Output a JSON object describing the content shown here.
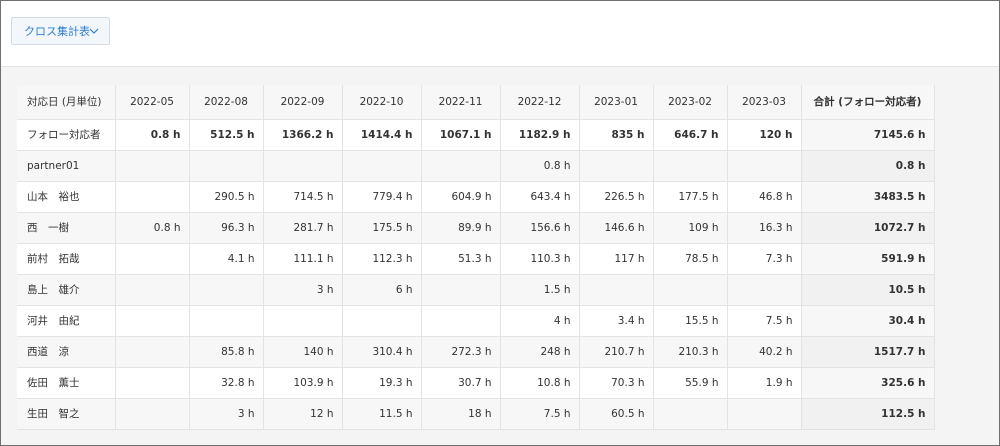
{
  "header": {
    "view_select_label": "クロス集計表"
  },
  "table": {
    "corner_label": "対応日 (月単位)",
    "columns": [
      "2022-05",
      "2022-08",
      "2022-09",
      "2022-10",
      "2022-11",
      "2022-12",
      "2023-01",
      "2023-02",
      "2023-03"
    ],
    "total_label": "合計 (フォロー対応者)",
    "summary_row": {
      "label": "フォロー対応者",
      "cells": [
        "0.8 h",
        "512.5 h",
        "1366.2 h",
        "1414.4 h",
        "1067.1 h",
        "1182.9 h",
        "835 h",
        "646.7 h",
        "120 h"
      ],
      "total": "7145.6 h"
    },
    "rows": [
      {
        "label": "partner01",
        "cells": [
          "",
          "",
          "",
          "",
          "",
          "0.8 h",
          "",
          "",
          ""
        ],
        "total": "0.8 h"
      },
      {
        "label": "山本　裕也",
        "cells": [
          "",
          "290.5 h",
          "714.5 h",
          "779.4 h",
          "604.9 h",
          "643.4 h",
          "226.5 h",
          "177.5 h",
          "46.8 h"
        ],
        "total": "3483.5 h"
      },
      {
        "label": "西　一樹",
        "cells": [
          "0.8 h",
          "96.3 h",
          "281.7 h",
          "175.5 h",
          "89.9 h",
          "156.6 h",
          "146.6 h",
          "109 h",
          "16.3 h"
        ],
        "total": "1072.7 h"
      },
      {
        "label": "前村　拓哉",
        "cells": [
          "",
          "4.1 h",
          "111.1 h",
          "112.3 h",
          "51.3 h",
          "110.3 h",
          "117 h",
          "78.5 h",
          "7.3 h"
        ],
        "total": "591.9 h"
      },
      {
        "label": "島上　雄介",
        "cells": [
          "",
          "",
          "3 h",
          "6 h",
          "",
          "1.5 h",
          "",
          "",
          ""
        ],
        "total": "10.5 h"
      },
      {
        "label": "河井　由紀",
        "cells": [
          "",
          "",
          "",
          "",
          "",
          "4 h",
          "3.4 h",
          "15.5 h",
          "7.5 h"
        ],
        "total": "30.4 h"
      },
      {
        "label": "西道　涼",
        "cells": [
          "",
          "85.8 h",
          "140 h",
          "310.4 h",
          "272.3 h",
          "248 h",
          "210.7 h",
          "210.3 h",
          "40.2 h"
        ],
        "total": "1517.7 h"
      },
      {
        "label": "佐田　薫士",
        "cells": [
          "",
          "32.8 h",
          "103.9 h",
          "19.3 h",
          "30.7 h",
          "10.8 h",
          "70.3 h",
          "55.9 h",
          "1.9 h"
        ],
        "total": "325.6 h"
      },
      {
        "label": "生田　智之",
        "cells": [
          "",
          "3 h",
          "12 h",
          "11.5 h",
          "18 h",
          "7.5 h",
          "60.5 h",
          "",
          ""
        ],
        "total": "112.5 h"
      }
    ]
  }
}
